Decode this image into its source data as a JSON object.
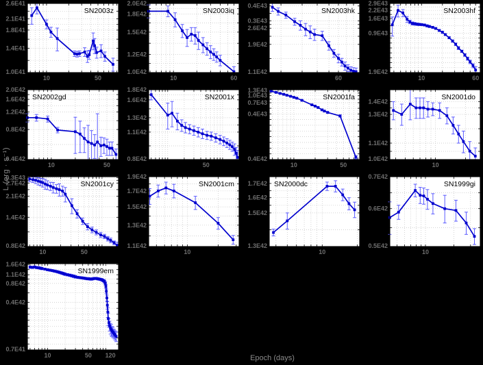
{
  "figure": {
    "xlabel": "Epoch (days)",
    "ylabel": "L (erg · s⁻¹)",
    "background": "#000000",
    "panel_bg": "#ffffff",
    "line_color": "#0000cd",
    "errorbar_color": "#5b5bff",
    "tick_label_color": "#6e6e6e",
    "axis_label_color": "#8a8a8a",
    "grid_color": "#c4c4c4",
    "title_color": "#000000"
  },
  "chart_data": [
    {
      "type": "line",
      "title": "SN2003z",
      "title_pos": "right",
      "xlim": [
        5.5,
        95
      ],
      "xticks": [
        10,
        50
      ],
      "yunit": 1e+41,
      "ylim": [
        1.0,
        2.6
      ],
      "yticks": [
        "2.6E41",
        "2.1E41",
        "1.8E41",
        "1.4E41",
        "1.0E41"
      ],
      "x": [
        6.3,
        7.4,
        10,
        11.5,
        14,
        24,
        26,
        28,
        33,
        36,
        38,
        43,
        45,
        48,
        55,
        62,
        80
      ],
      "y": [
        2.2,
        2.45,
        1.95,
        1.75,
        1.6,
        1.3,
        1.29,
        1.3,
        1.33,
        1.25,
        1.28,
        1.55,
        1.45,
        1.32,
        1.35,
        1.25,
        1.12
      ],
      "yerr": [
        0.25,
        0.2,
        0.12,
        0.12,
        0.25,
        0.05,
        0.05,
        0.05,
        0.08,
        0.1,
        0.08,
        0.18,
        0.15,
        0.1,
        0.12,
        0.08,
        0.1
      ]
    },
    {
      "type": "line",
      "title": "SN2003iq",
      "title_pos": "right",
      "xlim": [
        4.8,
        70
      ],
      "xticks": [
        10,
        60
      ],
      "yunit": 1e+42,
      "ylim": [
        1.0,
        2.0
      ],
      "yticks": [
        "2.0E42",
        "1.8E42",
        "1.5E42",
        "1.2E42",
        "1.0E42"
      ],
      "x": [
        4.8,
        8.5,
        10.5,
        13,
        15,
        17,
        19,
        21,
        24,
        27,
        30,
        33,
        36,
        40,
        60
      ],
      "y": [
        1.85,
        1.85,
        1.7,
        1.52,
        1.42,
        1.47,
        1.45,
        1.38,
        1.32,
        1.27,
        1.23,
        1.2,
        1.17,
        1.13,
        1.01
      ],
      "yerr": [
        0.12,
        0.1,
        0.12,
        0.1,
        0.12,
        0.1,
        0.12,
        0.12,
        0.1,
        0.08,
        0.08,
        0.07,
        0.06,
        0.06,
        0.05
      ]
    },
    {
      "type": "line",
      "title": "SN2003hk",
      "title_pos": "right",
      "xlim": [
        16,
        90
      ],
      "xticks": [
        60
      ],
      "yunit": 1e+42,
      "ylim": [
        1.1,
        4.2
      ],
      "yticks": [
        "0.4E43",
        "0.3E43",
        "2.6E42",
        "1.9E42",
        "1.1E42"
      ],
      "x": [
        17,
        19,
        22,
        26,
        29,
        32,
        35,
        38,
        44,
        50,
        55,
        60,
        64,
        68,
        72,
        76,
        80,
        84
      ],
      "y": [
        3.9,
        3.6,
        3.35,
        2.95,
        2.75,
        2.55,
        2.42,
        2.3,
        2.25,
        1.85,
        1.6,
        1.45,
        1.35,
        1.25,
        1.2,
        1.15,
        1.13,
        1.12
      ],
      "yerr": [
        0.3,
        0.25,
        0.2,
        0.2,
        0.25,
        0.3,
        0.3,
        0.25,
        0.2,
        0.15,
        0.12,
        0.12,
        0.1,
        0.1,
        0.08,
        0.08,
        0.08,
        0.08
      ]
    },
    {
      "type": "line",
      "title": "SN2003hf",
      "title_pos": "right",
      "xlim": [
        3.5,
        70
      ],
      "xticks": [
        10,
        60
      ],
      "yunit": 1e+43,
      "ylim": [
        0.19,
        2.9
      ],
      "yticks": [
        "2.9E43",
        "2.2E43",
        "1.6E43",
        "0.9E43",
        "1.9E42"
      ],
      "x": [
        3.8,
        4.6,
        5.4,
        6.2,
        6.8,
        7.4,
        8,
        8.6,
        9.2,
        10,
        11,
        12,
        13,
        14.5,
        16,
        18,
        20,
        22,
        25,
        28,
        31,
        34,
        38,
        42,
        46,
        50,
        55,
        60
      ],
      "y": [
        1.25,
        2.2,
        2.0,
        1.55,
        1.4,
        1.32,
        1.3,
        1.28,
        1.27,
        1.26,
        1.24,
        1.2,
        1.17,
        1.13,
        1.08,
        1.0,
        0.93,
        0.85,
        0.75,
        0.66,
        0.58,
        0.5,
        0.44,
        0.38,
        0.33,
        0.29,
        0.25,
        0.21
      ],
      "yerr": [
        0.45,
        0.5,
        0.28,
        0.18,
        0.1,
        0.08,
        0.07,
        0.06,
        0.06,
        0.05,
        0.05,
        0.05,
        0.05,
        0.04,
        0.04,
        0.04,
        0.04,
        0.03,
        0.03,
        0.03,
        0.03,
        0.03,
        0.02,
        0.02,
        0.02,
        0.02,
        0.02,
        0.03
      ]
    },
    {
      "type": "line",
      "title": "SN2002gd",
      "title_pos": "left",
      "xlim": [
        5,
        70
      ],
      "xticks": [
        10,
        50
      ],
      "yunit": 1e+42,
      "ylim": [
        0.4,
        2.0
      ],
      "yticks": [
        "2.0E42",
        "1.6E42",
        "1.2E42",
        "0.8E42",
        "0.4E42"
      ],
      "x": [
        5,
        6.5,
        9,
        12,
        20,
        23,
        26,
        29,
        32,
        35,
        38,
        42,
        46,
        50,
        54,
        58,
        65
      ],
      "y": [
        1.05,
        1.05,
        1.02,
        0.79,
        0.76,
        0.72,
        0.65,
        0.6,
        0.58,
        0.56,
        0.6,
        0.55,
        0.56,
        0.54,
        0.52,
        0.52,
        0.45
      ],
      "yerr": [
        0.1,
        0.08,
        0.07,
        0.05,
        0.3,
        0.25,
        0.18,
        0.28,
        0.2,
        0.15,
        0.55,
        0.12,
        0.1,
        0.1,
        0.08,
        0.08,
        0.06
      ]
    },
    {
      "type": "line",
      "title": "SN2001x",
      "title_pos": "right",
      "xlim": [
        4.5,
        200
      ],
      "xticks": [
        50
      ],
      "yunit": 1e+42,
      "ylim": [
        0.8,
        1.8
      ],
      "yticks": [
        "1.8E42",
        "1.6E42",
        "1.3E42",
        "1.1E42",
        "0.8E42"
      ],
      "x": [
        5,
        10,
        12,
        15,
        18,
        21,
        25,
        30,
        36,
        43,
        52,
        62,
        75,
        90,
        105,
        120,
        135,
        150,
        165,
        178,
        188
      ],
      "y": [
        1.7,
        1.34,
        1.37,
        1.25,
        1.19,
        1.16,
        1.14,
        1.12,
        1.1,
        1.08,
        1.06,
        1.05,
        1.03,
        1.01,
        0.99,
        0.97,
        0.95,
        0.93,
        0.9,
        0.86,
        0.82
      ],
      "yerr": [
        0.1,
        0.2,
        0.2,
        0.12,
        0.08,
        0.07,
        0.06,
        0.06,
        0.06,
        0.06,
        0.05,
        0.05,
        0.05,
        0.05,
        0.05,
        0.05,
        0.05,
        0.05,
        0.06,
        0.06,
        0.07
      ]
    },
    {
      "type": "line",
      "title": "SN2001fa",
      "title_pos": "right",
      "xlim": [
        4.5,
        85
      ],
      "xticks": [
        10,
        50
      ],
      "yunit": 1e+43,
      "ylim": [
        0.04,
        1.35
      ],
      "yticks": [
        "1.3E43",
        "1.0E43",
        "0.7E43",
        "0.4E43",
        "0.4E42"
      ],
      "x": [
        4.8,
        5.6,
        6.4,
        7.2,
        8,
        9,
        10,
        11,
        13,
        18,
        20,
        22,
        25,
        27,
        30,
        45,
        75
      ],
      "y": [
        1.26,
        1.18,
        1.12,
        1.07,
        1.02,
        0.97,
        0.92,
        0.88,
        0.79,
        0.63,
        0.59,
        0.55,
        0.49,
        0.46,
        0.43,
        0.36,
        0.045
      ],
      "yerr": [
        0.04,
        0.03,
        0.03,
        0.03,
        0.03,
        0.02,
        0.02,
        0.02,
        0.02,
        0.02,
        0.02,
        0.02,
        0.02,
        0.02,
        0.02,
        0.02,
        0.004
      ]
    },
    {
      "type": "line",
      "title": "SN2001do",
      "title_pos": "right",
      "xlim": [
        3.5,
        28
      ],
      "xticks": [
        10
      ],
      "yunit": 1e+42,
      "ylim": [
        1.0,
        1.5
      ],
      "yticks": [
        "1.4E42",
        "1.3E42",
        "1.1E42",
        "1.0E42"
      ],
      "x": [
        3.8,
        4.6,
        5.6,
        6.4,
        7,
        7.6,
        8.4,
        9.4,
        11,
        13,
        15,
        17,
        19,
        22,
        25
      ],
      "y": [
        1.33,
        1.3,
        1.38,
        1.35,
        1.35,
        1.35,
        1.34,
        1.34,
        1.33,
        1.29,
        1.22,
        1.16,
        1.11,
        1.05,
        1.02
      ],
      "yerr": [
        0.07,
        0.08,
        0.12,
        0.08,
        0.08,
        0.08,
        0.06,
        0.05,
        0.06,
        0.06,
        0.06,
        0.06,
        0.07,
        0.06,
        0.05
      ]
    },
    {
      "type": "line",
      "title": "SN2001cy",
      "title_pos": "right",
      "xlim": [
        5.5,
        190
      ],
      "xticks": [
        10,
        50
      ],
      "yunit": 1e+42,
      "ylim": [
        0.8,
        3.05
      ],
      "yticks": [
        "0.3E43",
        "2.7E42",
        "2.1E42",
        "1.4E42",
        "0.8E42"
      ],
      "x": [
        6,
        6.8,
        7.6,
        8.4,
        9.2,
        10,
        11,
        12,
        13.5,
        15,
        17,
        19,
        21.5,
        24,
        31,
        38,
        47,
        57,
        68,
        80,
        95,
        110,
        125,
        140,
        160,
        180
      ],
      "y": [
        2.92,
        2.88,
        2.85,
        2.8,
        2.76,
        2.72,
        2.65,
        2.6,
        2.54,
        2.48,
        2.42,
        2.38,
        2.32,
        2.18,
        1.75,
        1.5,
        1.3,
        1.17,
        1.1,
        1.05,
        1.0,
        0.97,
        0.93,
        0.9,
        0.86,
        0.82
      ],
      "yerr": [
        0.15,
        0.15,
        0.18,
        0.2,
        0.2,
        0.22,
        0.25,
        0.22,
        0.2,
        0.25,
        0.2,
        0.28,
        0.22,
        0.3,
        0.25,
        0.12,
        0.08,
        0.07,
        0.06,
        0.05,
        0.05,
        0.04,
        0.04,
        0.04,
        0.03,
        0.05
      ]
    },
    {
      "type": "line",
      "title": "SN2001cm",
      "title_pos": "right",
      "xlim": [
        4.2,
        32
      ],
      "xticks": [
        10
      ],
      "yunit": 1e+42,
      "ylim": [
        1.1,
        1.9
      ],
      "yticks": [
        "1.9E42",
        "1.7E42",
        "1.5E42",
        "1.3E42",
        "1.1E42"
      ],
      "x": [
        4.3,
        5.2,
        6.2,
        7.4,
        12,
        20,
        28
      ],
      "y": [
        1.63,
        1.7,
        1.74,
        1.7,
        1.55,
        1.32,
        1.16
      ],
      "yerr": [
        0.1,
        0.08,
        0.08,
        0.09,
        0.08,
        0.06,
        0.04
      ]
    },
    {
      "type": "line",
      "title": "SN2000dc",
      "title_pos": "left",
      "xlim": [
        3.5,
        21
      ],
      "xticks": [
        10
      ],
      "yunit": 1e+42,
      "ylim": [
        1.3,
        1.75
      ],
      "yticks": [
        "1.7E42",
        "1.6E42",
        "1.5E42",
        "1.3E42"
      ],
      "x": [
        3.8,
        5,
        11,
        13,
        15,
        17,
        19
      ],
      "y": [
        1.38,
        1.45,
        1.68,
        1.68,
        1.62,
        1.56,
        1.52
      ],
      "yerr": [
        0.02,
        0.05,
        0.03,
        0.04,
        0.04,
        0.04,
        0.05
      ]
    },
    {
      "type": "line",
      "title": "SN1999gi",
      "title_pos": "right",
      "xlim": [
        4.2,
        38
      ],
      "xticks": [
        10
      ],
      "yunit": 1e+42,
      "ylim": [
        0.5,
        0.7
      ],
      "yticks": [
        "0.7E42",
        "0.6E42",
        "0.5E42"
      ],
      "x": [
        4.2,
        5.2,
        7.8,
        8.8,
        9.6,
        10.5,
        12,
        16,
        21,
        27,
        33
      ],
      "y": [
        0.575,
        0.59,
        0.655,
        0.64,
        0.638,
        0.628,
        0.615,
        0.6,
        0.595,
        0.56,
        0.525
      ],
      "yerr": [
        0.045,
        0.02,
        0.02,
        0.025,
        0.025,
        0.03,
        0.03,
        0.04,
        0.03,
        0.03,
        0.02
      ]
    },
    {
      "type": "line",
      "title": "SN1999em",
      "title_pos": "right",
      "xlim": [
        4.5,
        165
      ],
      "xticks": [
        10,
        50,
        120
      ],
      "yunit": 1e+42,
      "ylim": [
        0.07,
        1.65
      ],
      "yticks": [
        "1.6E42",
        "1.1E42",
        "0.8E42",
        "0.4E42",
        "0.7E41"
      ],
      "x": [
        5,
        5.5,
        6,
        6.5,
        7,
        7.5,
        8,
        9,
        10,
        11,
        12,
        13,
        14,
        15,
        16,
        17,
        18,
        19,
        20,
        22,
        24,
        26,
        28,
        30,
        33,
        36,
        39,
        42,
        45,
        48,
        51,
        54,
        57,
        60,
        64,
        68,
        72,
        76,
        80,
        84,
        88,
        92,
        95,
        98,
        100,
        102,
        104,
        106,
        108,
        110,
        113,
        116,
        120,
        124,
        128,
        132,
        136,
        140,
        145,
        150
      ],
      "y": [
        1.45,
        1.44,
        1.46,
        1.43,
        1.42,
        1.4,
        1.38,
        1.35,
        1.32,
        1.3,
        1.28,
        1.26,
        1.24,
        1.22,
        1.2,
        1.18,
        1.16,
        1.14,
        1.12,
        1.1,
        1.08,
        1.06,
        1.04,
        1.02,
        1.0,
        0.99,
        0.98,
        0.97,
        0.96,
        0.95,
        0.95,
        0.94,
        0.94,
        0.95,
        0.96,
        0.96,
        0.95,
        0.94,
        0.93,
        0.92,
        0.9,
        0.88,
        0.85,
        0.8,
        0.72,
        0.6,
        0.47,
        0.36,
        0.28,
        0.22,
        0.19,
        0.17,
        0.155,
        0.147,
        0.14,
        0.135,
        0.13,
        0.125,
        0.12,
        0.115
      ],
      "yerr": [
        0.06,
        0.06,
        0.06,
        0.06,
        0.06,
        0.06,
        0.06,
        0.05,
        0.05,
        0.05,
        0.05,
        0.05,
        0.05,
        0.05,
        0.05,
        0.05,
        0.05,
        0.05,
        0.05,
        0.05,
        0.05,
        0.05,
        0.05,
        0.05,
        0.04,
        0.04,
        0.04,
        0.04,
        0.04,
        0.04,
        0.04,
        0.04,
        0.04,
        0.04,
        0.04,
        0.04,
        0.04,
        0.04,
        0.04,
        0.04,
        0.04,
        0.04,
        0.05,
        0.05,
        0.05,
        0.05,
        0.05,
        0.05,
        0.05,
        0.05,
        0.03,
        0.03,
        0.03,
        0.03,
        0.025,
        0.025,
        0.02,
        0.02,
        0.02,
        0.02
      ]
    }
  ]
}
